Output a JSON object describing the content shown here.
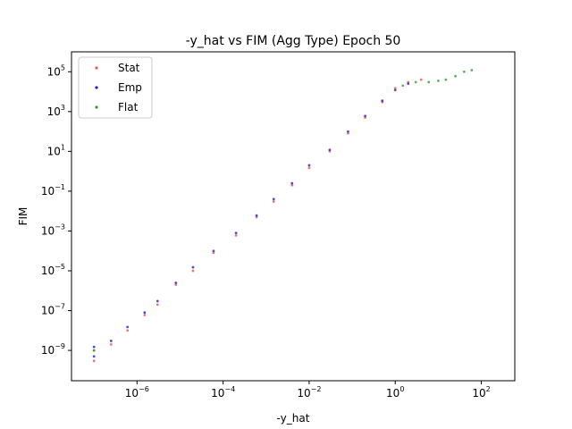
{
  "chart_data": {
    "type": "scatter",
    "title": "-y_hat vs FIM (Agg Type) Epoch 50",
    "xlabel": "-y_hat",
    "ylabel": "FIM",
    "xscale": "log",
    "yscale": "log",
    "xlim": [
      3e-08,
      600
    ],
    "ylim": [
      3e-11,
      1000000.0
    ],
    "x_ticks": [
      {
        "base": "10",
        "exp": "−6",
        "value": 1e-06
      },
      {
        "base": "10",
        "exp": "−4",
        "value": 0.0001
      },
      {
        "base": "10",
        "exp": "−2",
        "value": 0.01
      },
      {
        "base": "10",
        "exp": "0",
        "value": 1
      },
      {
        "base": "10",
        "exp": "2",
        "value": 100
      }
    ],
    "y_ticks": [
      {
        "base": "10",
        "exp": "−9",
        "value": 1e-09
      },
      {
        "base": "10",
        "exp": "−7",
        "value": 1e-07
      },
      {
        "base": "10",
        "exp": "−5",
        "value": 1e-05
      },
      {
        "base": "10",
        "exp": "−3",
        "value": 0.001
      },
      {
        "base": "10",
        "exp": "−1",
        "value": 0.1
      },
      {
        "base": "10",
        "exp": "1",
        "value": 10
      },
      {
        "base": "10",
        "exp": "3",
        "value": 1000
      },
      {
        "base": "10",
        "exp": "5",
        "value": 100000
      }
    ],
    "grid": false,
    "legend_position": "top-left",
    "series": [
      {
        "name": "Stat",
        "color": "#e8564a",
        "points": [
          [
            1e-07,
            3e-10
          ],
          [
            1e-07,
            1e-09
          ],
          [
            2.5e-07,
            2e-09
          ],
          [
            6e-07,
            1e-08
          ],
          [
            1.5e-06,
            6e-08
          ],
          [
            3e-06,
            2e-07
          ],
          [
            8e-06,
            2e-06
          ],
          [
            2e-05,
            1e-05
          ],
          [
            6e-05,
            8e-05
          ],
          [
            0.0002,
            0.0006
          ],
          [
            0.0006,
            0.005
          ],
          [
            0.0015,
            0.03
          ],
          [
            0.004,
            0.2
          ],
          [
            0.01,
            1.5
          ],
          [
            0.03,
            10
          ],
          [
            0.08,
            80
          ],
          [
            0.2,
            500
          ],
          [
            0.5,
            3000
          ],
          [
            1,
            15000.0
          ],
          [
            2,
            30000.0
          ],
          [
            4,
            40000.0
          ]
        ]
      },
      {
        "name": "Emp",
        "color": "#1f1fd6",
        "points": [
          [
            1e-07,
            5e-10
          ],
          [
            1e-07,
            1.5e-09
          ],
          [
            2.5e-07,
            3e-09
          ],
          [
            6e-07,
            1.5e-08
          ],
          [
            1.5e-06,
            8e-08
          ],
          [
            3e-06,
            3e-07
          ],
          [
            8e-06,
            2.5e-06
          ],
          [
            2e-05,
            1.5e-05
          ],
          [
            6e-05,
            0.0001
          ],
          [
            0.0002,
            0.0008
          ],
          [
            0.0006,
            0.006
          ],
          [
            0.0015,
            0.04
          ],
          [
            0.004,
            0.25
          ],
          [
            0.01,
            2
          ],
          [
            0.03,
            12
          ],
          [
            0.08,
            100
          ],
          [
            0.2,
            600
          ],
          [
            0.5,
            3500
          ],
          [
            1,
            12000.0
          ],
          [
            2,
            25000.0
          ]
        ]
      },
      {
        "name": "Flat",
        "color": "#2ca02c",
        "points": [
          [
            1e-07,
            1e-09
          ],
          [
            1.5,
            20000.0
          ],
          [
            3,
            30000.0
          ],
          [
            6,
            30000.0
          ],
          [
            10,
            35000.0
          ],
          [
            15,
            40000.0
          ],
          [
            25,
            60000.0
          ],
          [
            40,
            100000.0
          ],
          [
            60,
            120000.0
          ]
        ]
      }
    ]
  }
}
